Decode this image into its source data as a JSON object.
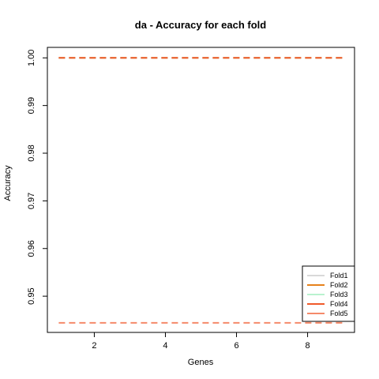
{
  "chart_data": {
    "type": "line",
    "title": "da - Accuracy for each fold",
    "xlabel": "Genes",
    "ylabel": "Accuracy",
    "xlim": [
      0.68,
      9.32
    ],
    "ylim": [
      0.9424,
      1.0022
    ],
    "x_ticks": [
      2,
      4,
      6,
      8
    ],
    "y_ticks": [
      0.95,
      0.96,
      0.97,
      0.98,
      0.99,
      1.0
    ],
    "y_tick_labels": [
      "0.95",
      "0.96",
      "0.97",
      "0.98",
      "0.99",
      "1.00"
    ],
    "x": [
      1,
      2,
      3,
      4,
      5,
      6,
      7,
      8,
      9
    ],
    "line_style": "dashed",
    "grid": false,
    "legend_position": "bottom-right",
    "series": [
      {
        "name": "Fold1",
        "color": "#d9d9d9",
        "values": [
          1,
          1,
          1,
          1,
          1,
          1,
          1,
          1,
          1
        ]
      },
      {
        "name": "Fold2",
        "color": "#e6811b",
        "values": [
          1,
          1,
          1,
          1,
          1,
          1,
          1,
          1,
          1
        ]
      },
      {
        "name": "Fold3",
        "color": "#b9f2cf",
        "values": [
          1,
          1,
          1,
          1,
          1,
          1,
          1,
          1,
          1
        ]
      },
      {
        "name": "Fold4",
        "color": "#f05a2a",
        "values": [
          1,
          1,
          1,
          1,
          1,
          1,
          1,
          1,
          1
        ]
      },
      {
        "name": "Fold5",
        "color": "#f58a6a",
        "values": [
          0.9444,
          0.9444,
          0.9444,
          0.9444,
          0.9444,
          0.9444,
          0.9444,
          0.9444,
          0.9444
        ]
      }
    ]
  }
}
